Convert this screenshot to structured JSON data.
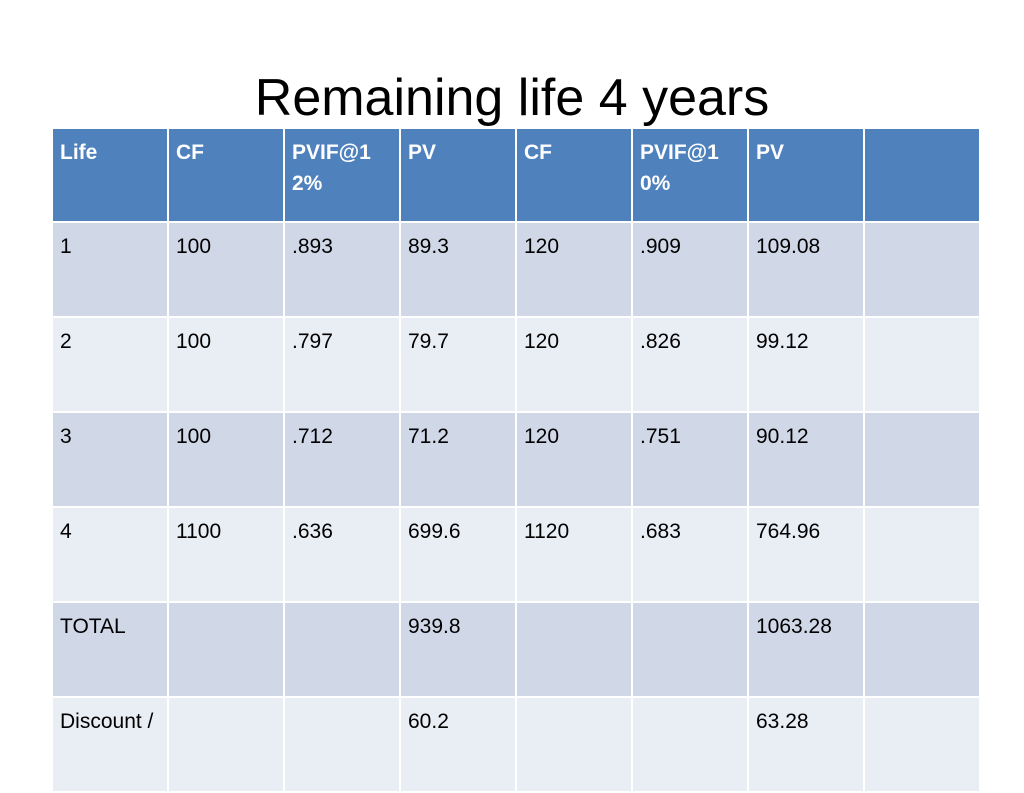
{
  "title": "Remaining life 4 years",
  "table": {
    "header": [
      "Life",
      "CF",
      "PVIF@12%",
      "PV",
      "CF",
      "PVIF@10%",
      "PV",
      null
    ],
    "rows": [
      [
        "1",
        "100",
        ".893",
        "89.3",
        "120",
        ".909",
        "109.08",
        null
      ],
      [
        "2",
        "100",
        ".797",
        "79.7",
        "120",
        ".826",
        "99.12",
        null
      ],
      [
        "3",
        "100",
        ".712",
        "71.2",
        "120",
        ".751",
        "90.12",
        null
      ],
      [
        "4",
        "1100",
        ".636",
        "699.6",
        "1120",
        ".683",
        "764.96",
        null
      ],
      [
        "TOTAL",
        null,
        null,
        "939.8",
        null,
        null,
        "1063.28",
        null
      ],
      [
        "Discount /",
        null,
        null,
        "60.2",
        null,
        null,
        "63.28",
        null
      ]
    ]
  }
}
